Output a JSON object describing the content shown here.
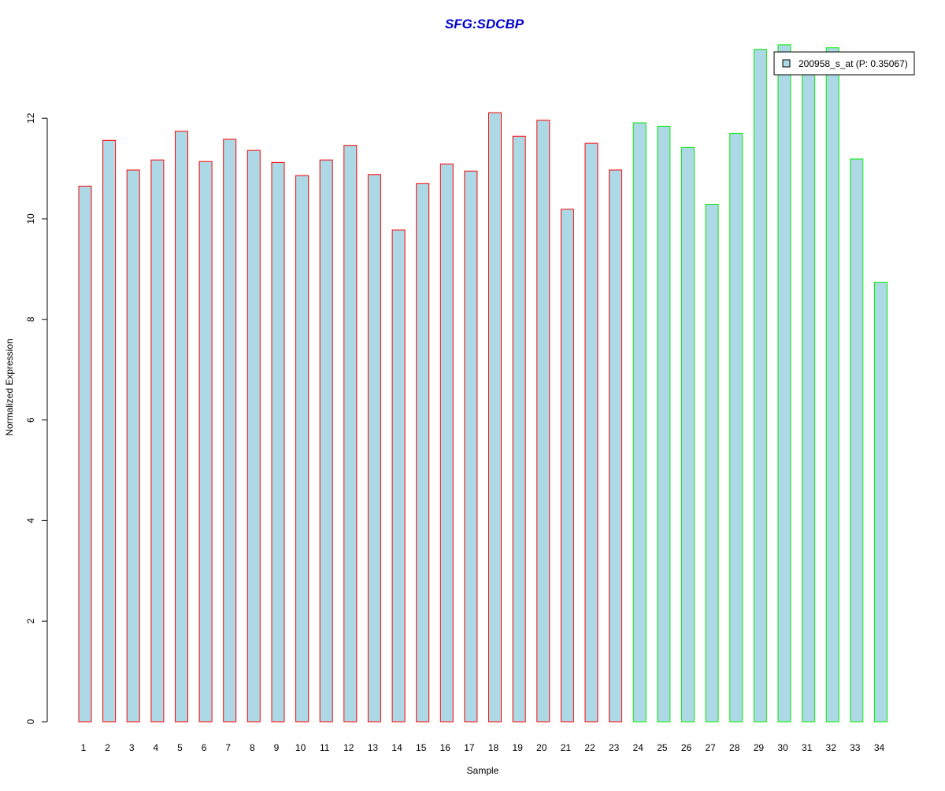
{
  "chart_data": {
    "type": "bar",
    "title": "SFG:SDCBP",
    "xlabel": "Sample",
    "ylabel": "Normalized Expression",
    "ylim": [
      0,
      13.6
    ],
    "yticks": [
      0,
      2,
      4,
      6,
      8,
      10,
      12
    ],
    "categories": [
      "1",
      "2",
      "3",
      "4",
      "5",
      "6",
      "7",
      "8",
      "9",
      "10",
      "11",
      "12",
      "13",
      "14",
      "15",
      "16",
      "17",
      "18",
      "19",
      "20",
      "21",
      "22",
      "23",
      "24",
      "25",
      "26",
      "27",
      "28",
      "29",
      "30",
      "31",
      "32",
      "33",
      "34"
    ],
    "values": [
      10.65,
      11.56,
      10.97,
      11.17,
      11.74,
      11.14,
      11.58,
      11.36,
      11.12,
      10.86,
      11.17,
      11.46,
      10.88,
      9.78,
      10.7,
      11.09,
      10.95,
      12.11,
      11.64,
      11.96,
      10.19,
      11.5,
      10.97,
      11.91,
      11.84,
      11.42,
      10.29,
      11.7,
      13.37,
      13.46,
      13.05,
      13.4,
      11.19,
      8.74
    ],
    "group_a_count": 23,
    "group_b_count": 11,
    "colors": {
      "bar_fill": "#add8e6",
      "group_a_border": "#ff0000",
      "group_b_border": "#00ee00",
      "title": "#0000cc",
      "axis": "#000000"
    },
    "legend": {
      "position": "top-right",
      "label": "200958_s_at (P: 0.35067)"
    },
    "grid": false
  }
}
